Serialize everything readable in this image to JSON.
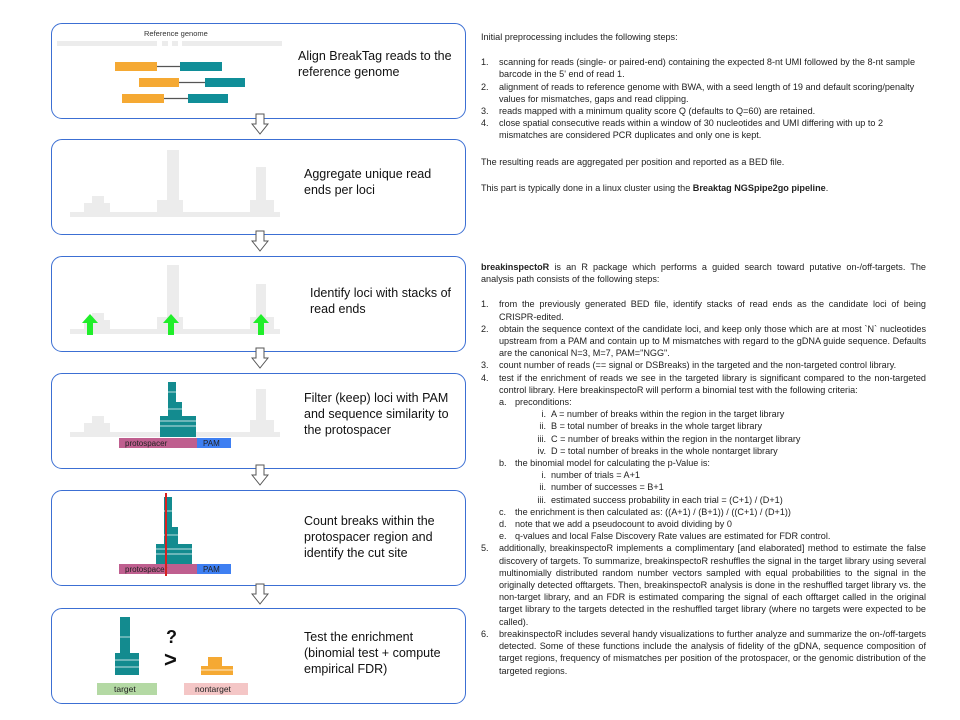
{
  "colors": {
    "frame": "#3c6fd3",
    "read_orange": "#f5a933",
    "read_teal": "#108e98",
    "stack_gray": "#ececec",
    "peak_teal": "#138b8f",
    "arrow_green": "#20ee2a",
    "protospacer": "#bf5f8f",
    "pam": "#3e7ff2",
    "cut_red": "#d62020",
    "nontarget_orange": "#f5a933",
    "target_label_bg": "#b4d9a4",
    "nontarget_label_bg": "#f4c6c6"
  },
  "steps": [
    {
      "title": "Align BreakTag reads to the reference genome",
      "label": "Reference genome"
    },
    {
      "title": "Aggregate unique read ends per loci"
    },
    {
      "title": "Identify loci with stacks of read ends"
    },
    {
      "title": "Filter (keep) loci with PAM and sequence similarity to the protospacer",
      "protospacer_label": "protospacer",
      "pam_label": "PAM"
    },
    {
      "title": "Count breaks within the protospacer region and identify the cut site",
      "protospacer_label": "protospacer",
      "pam_label": "PAM"
    },
    {
      "title": "Test the enrichment (binomial test + compute empirical FDR)",
      "question": "?",
      "greater": ">",
      "target_label": "target",
      "nontarget_label": "nontarget"
    }
  ],
  "preprocessing": {
    "intro": "Initial preprocessing includes the following steps:",
    "items": [
      "scanning for reads (single- or paired-end) containing the expected 8-nt UMI followed by the 8-nt sample barcode in the 5' end of read 1.",
      "alignment of reads to reference genome with BWA, with a seed length of 19 and default scoring/penalty values for mismatches, gaps and read clipping.",
      "reads mapped with a minimum quality score Q (defaults to Q=60) are retained.",
      "close spatial consecutive reads within a window of 30 nucleotides and UMI differing with up to 2 mismatches are considered PCR duplicates and only one is kept."
    ],
    "aggregated": "The resulting reads are aggregated per position and reported as a BED file.",
    "cluster_text": "This part is typically done in a linux cluster using the ",
    "cluster_bold": "Breaktag NGSpipe2go pipeline",
    "cluster_end": "."
  },
  "breakinspector": {
    "name": "breakinspectoR",
    "intro_rest": " is an R package which performs a guided search toward putative on-/off-targets. The analysis path consists of the following steps:",
    "items": [
      "from the previously generated BED file, identify stacks of read ends as the candidate loci of being CRISPR-edited.",
      "obtain the sequence context of the candidate loci, and keep only those which are at most `N` nucleotides upstream from a PAM and contain up to M mismatches with regard to the gDNA guide sequence. Defaults are the canonical N=3, M=7, PAM=\"NGG\".",
      "count number of reads (== signal or DSBreaks) in the targeted and the non-targeted control library.",
      "test if the enrichment of reads we see in the targeted library is significant compared to the non-targeted control library. Here breakinspectoR will perform a binomial test with the following criteria:"
    ],
    "preconditions": "preconditions:",
    "pre_items": [
      "A = number of breaks within the region in the target library",
      "B = total number of breaks in the whole target library",
      "C = number of breaks within the region in the nontarget library",
      "D = total number of breaks in the whole nontarget library"
    ],
    "binomial": "the binomial model for calculating the p-Value is:",
    "bin_items": [
      "number of trials = A+1",
      "number of successes = B+1",
      "estimated success probability in each trial =  (C+1) / (D+1)"
    ],
    "enrichment": "the enrichment is then calculated as: ((A+1) / (B+1)) / ((C+1) / (D+1))",
    "pseudocount": "note that we add a pseudocount to avoid dividing by 0",
    "qvalues": "q-values and local False Discovery Rate values are estimated for FDR control.",
    "item5": "additionally, breakinspectoR implements a complimentary [and elaborated] method to estimate the false discovery of targets. To summarize, breakinspectoR reshuffles the signal in the target library using several multinomially distributed random number vectors sampled with equal probabilities to the signal in the originally detected offtargets. Then, breakinspectoR analysis is done in the reshuffled target library vs. the non-target library, and an FDR is estimated comparing the signal of each offtarget called in the original target library to the targets detected in the reshuffled target library (where no targets were expected to be called).",
    "item6": "breakinspectoR includes several handy visualizations to further analyze and summarize the on-/off-targets detected. Some of these functions include the analysis of fidelity of the gDNA, sequence composition of target regions, frequency of mismatches per position of the protospacer, or the genomic distribution of the targeted regions."
  }
}
